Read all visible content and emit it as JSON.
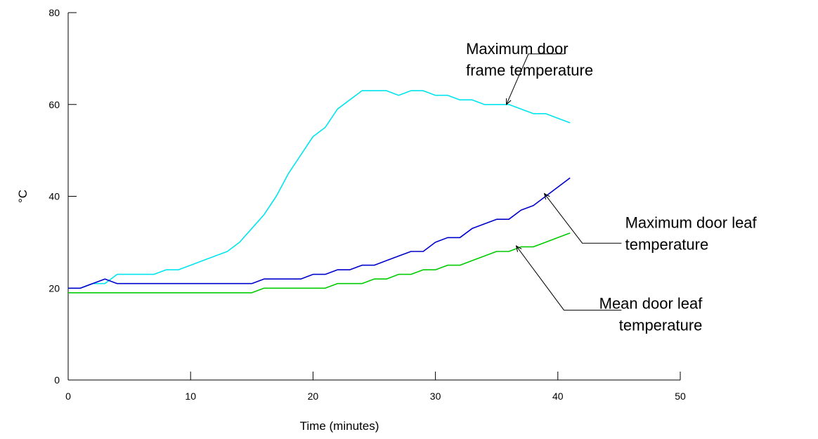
{
  "chart_data": {
    "type": "line",
    "title": "",
    "xlabel": "Time (minutes)",
    "ylabel": "°C",
    "xlim": [
      0,
      50
    ],
    "ylim": [
      0,
      80
    ],
    "x_ticks": [
      "0",
      "10",
      "20",
      "30",
      "40",
      "50"
    ],
    "y_ticks": [
      "0",
      "20",
      "40",
      "60",
      "80"
    ],
    "grid": false,
    "legend": "none",
    "series": [
      {
        "key": "frame_max",
        "color": "#00e5ee",
        "x": [
          0,
          1,
          2,
          3,
          4,
          5,
          6,
          7,
          8,
          9,
          10,
          11,
          12,
          13,
          14,
          15,
          16,
          17,
          18,
          19,
          20,
          21,
          22,
          23,
          24,
          25,
          26,
          27,
          28,
          29,
          30,
          31,
          32,
          33,
          34,
          35,
          36,
          37,
          38,
          39,
          40,
          41
        ],
        "y": [
          20,
          20,
          21,
          21,
          23,
          23,
          23,
          23,
          24,
          24,
          25,
          26,
          27,
          28,
          30,
          33,
          36,
          40,
          45,
          49,
          53,
          55,
          59,
          61,
          63,
          63,
          63,
          62,
          63,
          63,
          62,
          62,
          61,
          61,
          60,
          60,
          60,
          59,
          58,
          58,
          57,
          56
        ]
      },
      {
        "key": "leaf_max",
        "color": "#0000cc",
        "x": [
          0,
          1,
          2,
          3,
          4,
          5,
          6,
          7,
          8,
          9,
          10,
          11,
          12,
          13,
          14,
          15,
          16,
          17,
          18,
          19,
          20,
          21,
          22,
          23,
          24,
          25,
          26,
          27,
          28,
          29,
          30,
          31,
          32,
          33,
          34,
          35,
          36,
          37,
          38,
          39,
          40,
          41
        ],
        "y": [
          20,
          20,
          21,
          22,
          21,
          21,
          21,
          21,
          21,
          21,
          21,
          21,
          21,
          21,
          21,
          21,
          22,
          22,
          22,
          22,
          23,
          23,
          24,
          24,
          25,
          25,
          26,
          27,
          28,
          28,
          30,
          31,
          31,
          33,
          34,
          35,
          35,
          37,
          38,
          40,
          42,
          44
        ]
      },
      {
        "key": "leaf_mean",
        "color": "#00cc00",
        "x": [
          0,
          1,
          2,
          3,
          4,
          5,
          6,
          7,
          8,
          9,
          10,
          11,
          12,
          13,
          14,
          15,
          16,
          17,
          18,
          19,
          20,
          21,
          22,
          23,
          24,
          25,
          26,
          27,
          28,
          29,
          30,
          31,
          32,
          33,
          34,
          35,
          36,
          37,
          38,
          39,
          40,
          41
        ],
        "y": [
          19,
          19,
          19,
          19,
          19,
          19,
          19,
          19,
          19,
          19,
          19,
          19,
          19,
          19,
          19,
          19,
          20,
          20,
          20,
          20,
          20,
          20,
          21,
          21,
          21,
          22,
          22,
          23,
          23,
          24,
          24,
          25,
          25,
          26,
          27,
          28,
          28,
          29,
          29,
          30,
          31,
          32
        ]
      }
    ],
    "annotations": [
      {
        "lines": [
          "Maximum door",
          "frame temperature"
        ],
        "align": "start",
        "text_x": 32.5,
        "text_y": 71.0,
        "line_gap": 4.7,
        "callout": [
          [
            40.5,
            71.0
          ],
          [
            37.6,
            71.0
          ],
          [
            35.8,
            60.0
          ]
        ]
      },
      {
        "lines": [
          "Maximum door leaf",
          "temperature"
        ],
        "align": "start",
        "text_x": 45.5,
        "text_y": 33.1,
        "line_gap": 4.7,
        "callout": [
          [
            45.2,
            29.8
          ],
          [
            42.0,
            29.8
          ],
          [
            38.9,
            40.6
          ]
        ]
      },
      {
        "lines": [
          "Mean door leaf",
          "temperature"
        ],
        "align": "end",
        "text_x": 51.8,
        "text_y": 15.5,
        "line_gap": 4.7,
        "callout": [
          [
            45.2,
            15.2
          ],
          [
            40.5,
            15.2
          ],
          [
            36.6,
            29.2
          ]
        ]
      }
    ]
  }
}
